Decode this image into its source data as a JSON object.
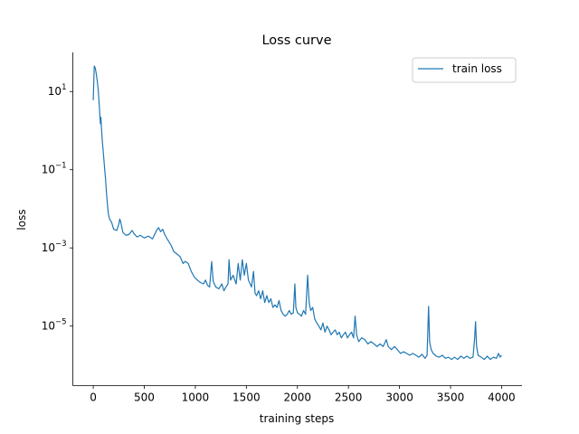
{
  "chart_data": {
    "type": "line",
    "title": "Loss curve",
    "xlabel": "training steps",
    "ylabel": "loss",
    "xlim": [
      -200,
      4200
    ],
    "ylim": [
      3e-07,
      100
    ],
    "yscale": "log",
    "grid": false,
    "legend_position": "top-right",
    "x_ticks": [
      0,
      500,
      1000,
      1500,
      2000,
      2500,
      3000,
      3500,
      4000
    ],
    "x_tick_labels": [
      "0",
      "500",
      "1000",
      "1500",
      "2000",
      "2500",
      "3000",
      "3500",
      "4000"
    ],
    "y_ticks": [
      1e-05,
      0.001,
      0.1,
      10
    ],
    "y_tick_labels": [
      {
        "base": "10",
        "exp": "−5"
      },
      {
        "base": "10",
        "exp": "−3"
      },
      {
        "base": "10",
        "exp": "−1"
      },
      {
        "base": "10",
        "exp": "1"
      }
    ],
    "series": [
      {
        "name": "train loss",
        "color": "#1f77b4",
        "points": [
          [
            0,
            6
          ],
          [
            10,
            45
          ],
          [
            20,
            40
          ],
          [
            30,
            28
          ],
          [
            40,
            18
          ],
          [
            50,
            10
          ],
          [
            60,
            4
          ],
          [
            70,
            1.5
          ],
          [
            75,
            2.2
          ],
          [
            80,
            1.2
          ],
          [
            90,
            0.5
          ],
          [
            100,
            0.25
          ],
          [
            110,
            0.12
          ],
          [
            120,
            0.06
          ],
          [
            130,
            0.025
          ],
          [
            140,
            0.012
          ],
          [
            150,
            0.007
          ],
          [
            160,
            0.0055
          ],
          [
            180,
            0.0045
          ],
          [
            200,
            0.003
          ],
          [
            230,
            0.0028
          ],
          [
            250,
            0.004
          ],
          [
            260,
            0.0055
          ],
          [
            270,
            0.0045
          ],
          [
            290,
            0.0025
          ],
          [
            320,
            0.0021
          ],
          [
            350,
            0.0022
          ],
          [
            380,
            0.0028
          ],
          [
            400,
            0.0023
          ],
          [
            430,
            0.0019
          ],
          [
            460,
            0.0021
          ],
          [
            500,
            0.0018
          ],
          [
            540,
            0.002
          ],
          [
            580,
            0.0017
          ],
          [
            620,
            0.0028
          ],
          [
            640,
            0.0033
          ],
          [
            660,
            0.0026
          ],
          [
            680,
            0.003
          ],
          [
            700,
            0.0022
          ],
          [
            730,
            0.0016
          ],
          [
            760,
            0.0012
          ],
          [
            790,
            0.0008
          ],
          [
            820,
            0.0007
          ],
          [
            850,
            0.0006
          ],
          [
            880,
            0.0004
          ],
          [
            900,
            0.00045
          ],
          [
            930,
            0.0004
          ],
          [
            960,
            0.00025
          ],
          [
            990,
            0.00018
          ],
          [
            1020,
            0.00015
          ],
          [
            1050,
            0.00013
          ],
          [
            1080,
            0.00012
          ],
          [
            1100,
            0.00015
          ],
          [
            1120,
            0.00011
          ],
          [
            1140,
            0.0001
          ],
          [
            1160,
            0.00045
          ],
          [
            1175,
            0.00014
          ],
          [
            1200,
            0.0001
          ],
          [
            1230,
            9e-05
          ],
          [
            1260,
            0.00012
          ],
          [
            1280,
            8e-05
          ],
          [
            1300,
            0.0001
          ],
          [
            1320,
            0.00012
          ],
          [
            1330,
            0.0005
          ],
          [
            1345,
            0.00015
          ],
          [
            1370,
            0.0002
          ],
          [
            1400,
            0.00012
          ],
          [
            1420,
            0.0004
          ],
          [
            1440,
            0.00015
          ],
          [
            1460,
            0.0005
          ],
          [
            1480,
            0.0002
          ],
          [
            1500,
            0.0004
          ],
          [
            1520,
            0.00015
          ],
          [
            1550,
            0.0001
          ],
          [
            1570,
            0.00025
          ],
          [
            1585,
            7e-05
          ],
          [
            1600,
            6e-05
          ],
          [
            1620,
            8e-05
          ],
          [
            1640,
            5e-05
          ],
          [
            1660,
            8e-05
          ],
          [
            1680,
            4e-05
          ],
          [
            1700,
            6e-05
          ],
          [
            1720,
            4e-05
          ],
          [
            1740,
            5e-05
          ],
          [
            1760,
            3e-05
          ],
          [
            1780,
            3.5e-05
          ],
          [
            1800,
            3e-05
          ],
          [
            1820,
            4.5e-05
          ],
          [
            1840,
            2.5e-05
          ],
          [
            1860,
            2e-05
          ],
          [
            1880,
            1.8e-05
          ],
          [
            1900,
            2e-05
          ],
          [
            1920,
            2.5e-05
          ],
          [
            1940,
            2e-05
          ],
          [
            1960,
            2.2e-05
          ],
          [
            1975,
            0.00012
          ],
          [
            1985,
            3e-05
          ],
          [
            2000,
            2.2e-05
          ],
          [
            2020,
            2e-05
          ],
          [
            2040,
            1.8e-05
          ],
          [
            2060,
            2.5e-05
          ],
          [
            2080,
            2e-05
          ],
          [
            2100,
            0.0002
          ],
          [
            2115,
            4e-05
          ],
          [
            2130,
            2.5e-05
          ],
          [
            2150,
            3e-05
          ],
          [
            2170,
            1.5e-05
          ],
          [
            2190,
            1.2e-05
          ],
          [
            2210,
            1e-05
          ],
          [
            2230,
            8e-06
          ],
          [
            2250,
            1.2e-05
          ],
          [
            2270,
            7e-06
          ],
          [
            2290,
            1e-05
          ],
          [
            2310,
            8e-06
          ],
          [
            2330,
            6e-06
          ],
          [
            2350,
            7e-06
          ],
          [
            2370,
            8e-06
          ],
          [
            2390,
            6e-06
          ],
          [
            2410,
            7e-06
          ],
          [
            2430,
            5e-06
          ],
          [
            2450,
            6e-06
          ],
          [
            2470,
            7e-06
          ],
          [
            2490,
            5e-06
          ],
          [
            2510,
            6e-06
          ],
          [
            2530,
            7e-06
          ],
          [
            2550,
            5e-06
          ],
          [
            2565,
            1.8e-05
          ],
          [
            2580,
            6e-06
          ],
          [
            2600,
            4e-06
          ],
          [
            2630,
            5e-06
          ],
          [
            2660,
            4.5e-06
          ],
          [
            2690,
            3.5e-06
          ],
          [
            2720,
            4e-06
          ],
          [
            2750,
            3.5e-06
          ],
          [
            2780,
            3e-06
          ],
          [
            2810,
            3.5e-06
          ],
          [
            2840,
            3e-06
          ],
          [
            2870,
            4.5e-06
          ],
          [
            2890,
            3e-06
          ],
          [
            2920,
            2.5e-06
          ],
          [
            2950,
            3e-06
          ],
          [
            2980,
            2.5e-06
          ],
          [
            3010,
            2e-06
          ],
          [
            3040,
            2.2e-06
          ],
          [
            3070,
            2e-06
          ],
          [
            3100,
            1.8e-06
          ],
          [
            3130,
            2e-06
          ],
          [
            3160,
            1.8e-06
          ],
          [
            3190,
            1.6e-06
          ],
          [
            3220,
            1.9e-06
          ],
          [
            3250,
            1.5e-06
          ],
          [
            3270,
            1.8e-06
          ],
          [
            3285,
            3.2e-05
          ],
          [
            3295,
            4e-06
          ],
          [
            3310,
            2.5e-06
          ],
          [
            3330,
            2e-06
          ],
          [
            3360,
            1.7e-06
          ],
          [
            3390,
            1.6e-06
          ],
          [
            3420,
            1.8e-06
          ],
          [
            3450,
            1.5e-06
          ],
          [
            3480,
            1.6e-06
          ],
          [
            3510,
            1.4e-06
          ],
          [
            3540,
            1.6e-06
          ],
          [
            3570,
            1.4e-06
          ],
          [
            3600,
            1.7e-06
          ],
          [
            3630,
            1.5e-06
          ],
          [
            3660,
            1.7e-06
          ],
          [
            3690,
            1.5e-06
          ],
          [
            3720,
            1.6e-06
          ],
          [
            3735,
            4.5e-06
          ],
          [
            3745,
            1.3e-05
          ],
          [
            3755,
            3e-06
          ],
          [
            3770,
            1.8e-06
          ],
          [
            3800,
            1.6e-06
          ],
          [
            3830,
            1.4e-06
          ],
          [
            3860,
            1.7e-06
          ],
          [
            3890,
            1.4e-06
          ],
          [
            3920,
            1.6e-06
          ],
          [
            3950,
            1.5e-06
          ],
          [
            3970,
            2e-06
          ],
          [
            3985,
            1.6e-06
          ],
          [
            4000,
            1.8e-06
          ]
        ]
      }
    ]
  }
}
